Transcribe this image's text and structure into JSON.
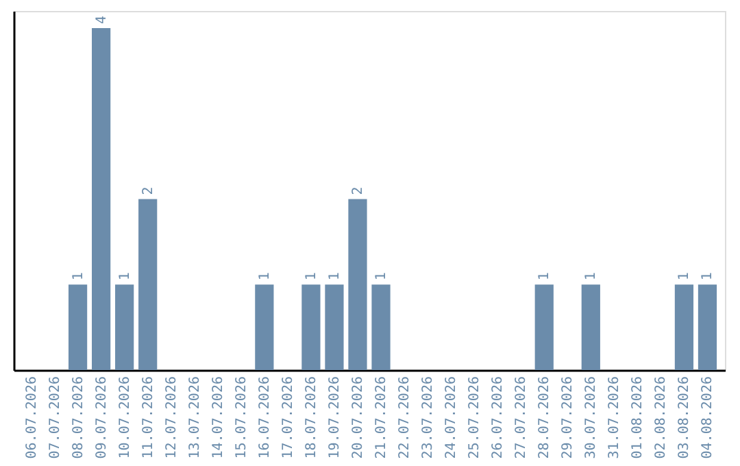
{
  "chart_data": {
    "type": "bar",
    "categories": [
      "06.07.2026",
      "07.07.2026",
      "08.07.2026",
      "09.07.2026",
      "10.07.2026",
      "11.07.2026",
      "12.07.2026",
      "13.07.2026",
      "14.07.2026",
      "15.07.2026",
      "16.07.2026",
      "17.07.2026",
      "18.07.2026",
      "19.07.2026",
      "20.07.2026",
      "21.07.2026",
      "22.07.2026",
      "23.07.2026",
      "24.07.2026",
      "25.07.2026",
      "26.07.2026",
      "27.07.2026",
      "28.07.2026",
      "29.07.2026",
      "30.07.2026",
      "31.07.2026",
      "01.08.2026",
      "02.08.2026",
      "03.08.2026",
      "04.08.2026"
    ],
    "values": [
      0,
      0,
      1,
      4,
      1,
      2,
      0,
      0,
      0,
      0,
      1,
      0,
      1,
      1,
      2,
      1,
      0,
      0,
      0,
      0,
      0,
      0,
      1,
      0,
      1,
      0,
      0,
      0,
      1,
      1
    ],
    "value_labels": [
      null,
      null,
      "1",
      "4",
      "1",
      "2",
      null,
      null,
      null,
      null,
      "1",
      null,
      "1",
      "1",
      "2",
      "1",
      null,
      null,
      null,
      null,
      null,
      null,
      "1",
      null,
      "1",
      null,
      null,
      null,
      "1",
      "1"
    ],
    "color": "#6b8cab",
    "ylim": [
      0,
      4.2
    ],
    "grid": false,
    "tick_labels": "x"
  }
}
